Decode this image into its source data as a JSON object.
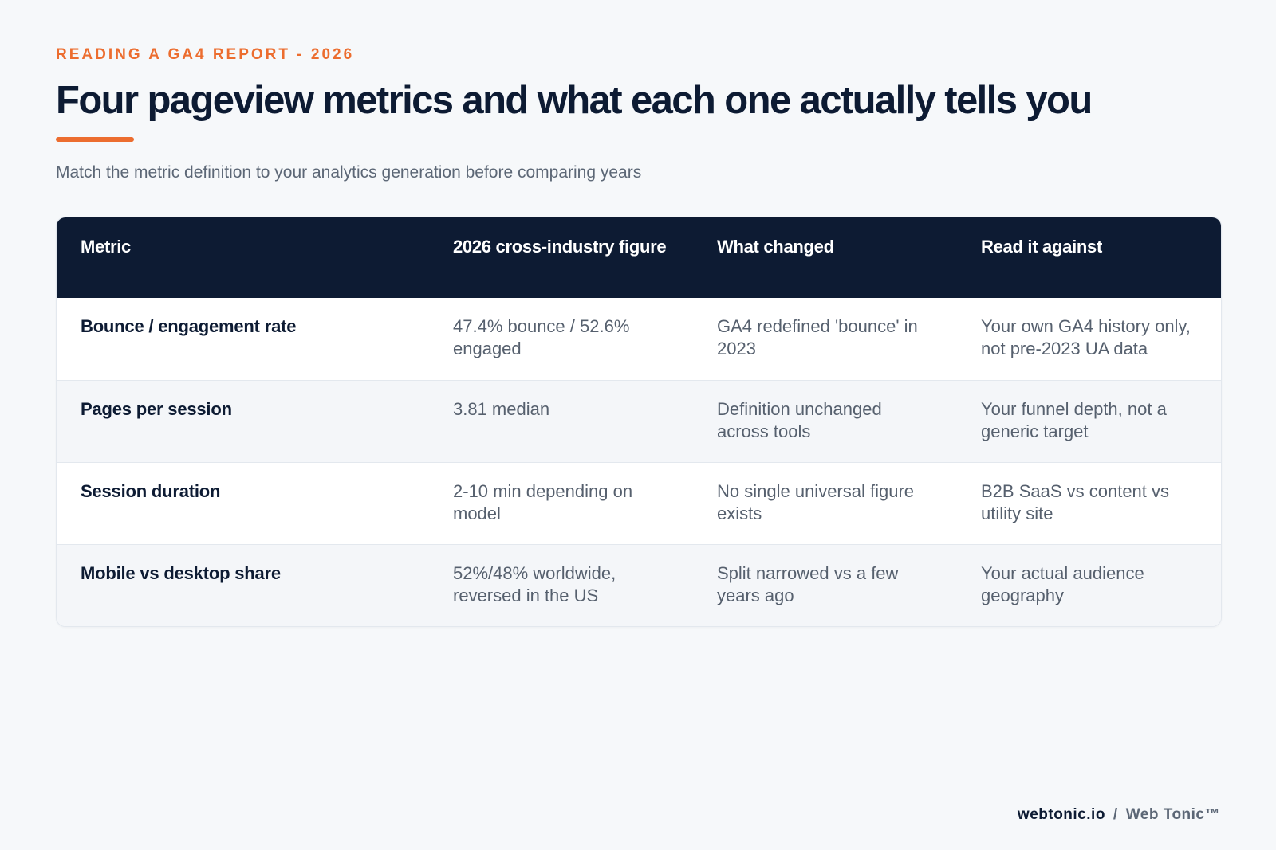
{
  "header": {
    "eyebrow": "READING A GA4 REPORT - 2026",
    "title": "Four pageview metrics and what each one actually tells you",
    "subtitle": "Match the metric definition to your analytics generation before comparing years"
  },
  "table": {
    "columns": [
      "Metric",
      "2026 cross-industry figure",
      "What changed",
      "Read it against"
    ],
    "rows": [
      [
        "Bounce / engagement rate",
        "47.4% bounce / 52.6% engaged",
        "GA4 redefined 'bounce' in 2023",
        "Your own GA4 history only, not pre-2023 UA data"
      ],
      [
        "Pages per session",
        "3.81 median",
        "Definition unchanged across tools",
        "Your funnel depth, not a generic target"
      ],
      [
        "Session duration",
        "2-10 min depending on model",
        "No single universal figure exists",
        "B2B SaaS vs content vs utility site"
      ],
      [
        "Mobile vs desktop share",
        "52%/48% worldwide, reversed in the US",
        "Split narrowed vs a few years ago",
        "Your actual audience geography"
      ]
    ]
  },
  "footer": {
    "domain": "webtonic.io",
    "separator": "/",
    "brand": "Web Tonic™"
  },
  "colors": {
    "accent": "#ec6d2f",
    "navy": "#0d1b33",
    "background": "#f6f8fa"
  }
}
